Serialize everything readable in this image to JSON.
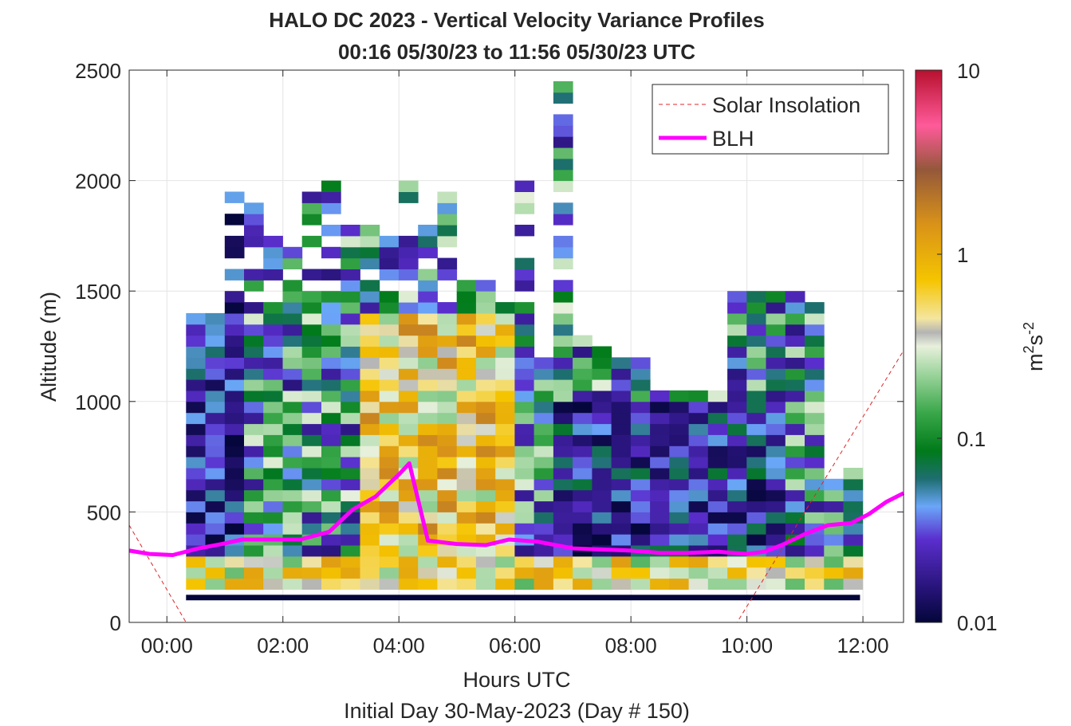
{
  "chart_data": {
    "type": "heatmap",
    "title": "HALO DC 2023 - Vertical Velocity Variance Profiles",
    "subtitle": "00:16 05/30/23 to 11:56 05/30/23  UTC",
    "xlabel": "Hours UTC",
    "xlabel2": "Initial Day 30-May-2023 (Day # 150)",
    "ylabel": "Altitude (m)",
    "xlim": [
      -0.65,
      12.7
    ],
    "ylim": [
      0,
      2500
    ],
    "x_ticks": [
      0,
      2,
      4,
      6,
      8,
      10,
      12
    ],
    "x_tick_labels": [
      "00:00",
      "02:00",
      "04:00",
      "06:00",
      "08:00",
      "10:00",
      "12:00"
    ],
    "y_ticks": [
      0,
      500,
      1000,
      1500,
      2000,
      2500
    ],
    "y_tick_labels": [
      "0",
      "500",
      "1000",
      "1500",
      "2000",
      "2500"
    ],
    "grid": true,
    "legend_position": "top-right",
    "colorbar": {
      "label_base": "m",
      "label_sup1": "2",
      "label_mid": "s",
      "label_sup2": "-2",
      "scale": "log",
      "range": [
        0.01,
        10
      ],
      "ticks": [
        0.01,
        0.1,
        1,
        10
      ],
      "tick_labels": [
        "0.01",
        "0.1",
        "1",
        "10"
      ]
    },
    "cells": {
      "time_step_hours": 0.3333,
      "altitude_step_m": 50,
      "value_range": [
        0.01,
        1.8
      ],
      "lowest_gate_altitude_m": 125,
      "lowest_gate_value": 0.01,
      "time_range": [
        0.33,
        11.95
      ]
    },
    "series": [
      {
        "name": "Solar Insolation",
        "style": "dashed",
        "color": "#e0262a",
        "x": [
          -0.65,
          0.33,
          9.83,
          12.7
        ],
        "y": [
          440,
          0,
          0,
          1230
        ]
      },
      {
        "name": "BLH",
        "style": "solid",
        "color": "#ff00ff",
        "x": [
          -0.65,
          -0.3,
          0.1,
          0.55,
          0.95,
          1.3,
          2.3,
          2.8,
          3.2,
          3.6,
          4.0,
          4.18,
          4.5,
          5.0,
          5.5,
          5.9,
          6.4,
          7.0,
          7.5,
          8.0,
          8.5,
          9.0,
          9.5,
          10.0,
          10.3,
          10.6,
          11.0,
          11.4,
          11.8,
          12.1,
          12.4,
          12.7
        ],
        "y": [
          325,
          310,
          305,
          335,
          355,
          375,
          375,
          410,
          510,
          570,
          670,
          720,
          370,
          355,
          350,
          375,
          365,
          335,
          330,
          325,
          315,
          315,
          320,
          310,
          320,
          350,
          400,
          440,
          450,
          490,
          545,
          585
        ]
      }
    ],
    "legend": [
      "Solar Insolation",
      "BLH"
    ]
  }
}
